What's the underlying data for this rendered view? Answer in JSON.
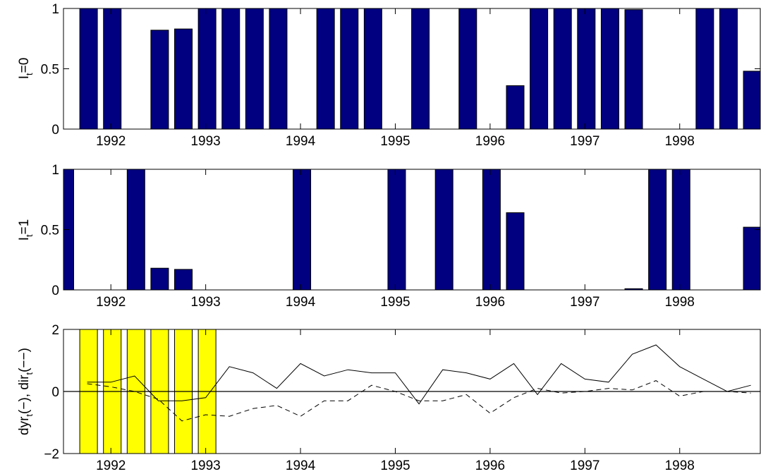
{
  "chart_data": [
    {
      "type": "bar",
      "ylabel_main": "I",
      "ylabel_sub": "t",
      "ylabel_rest": "=0",
      "xlim": [
        1991.5,
        1998.85
      ],
      "ylim": [
        0,
        1
      ],
      "yticks": [
        "0",
        "0.5",
        "1"
      ],
      "xticks": [
        "1992",
        "1993",
        "1994",
        "1995",
        "1996",
        "1997",
        "1998"
      ],
      "bar_color": "#000080",
      "x": [
        1991.75,
        1992.0,
        1992.25,
        1992.5,
        1992.75,
        1993.0,
        1993.25,
        1993.5,
        1993.75,
        1994.0,
        1994.25,
        1994.5,
        1994.75,
        1995.0,
        1995.25,
        1995.5,
        1995.75,
        1996.0,
        1996.25,
        1996.5,
        1996.75,
        1997.0,
        1997.25,
        1997.5,
        1997.75,
        1998.0,
        1998.25,
        1998.5,
        1998.75
      ],
      "values": [
        1,
        1,
        0,
        0.82,
        0.83,
        1,
        1,
        1,
        1,
        0,
        1,
        1,
        1,
        0,
        1,
        0,
        1,
        0,
        0.36,
        1,
        1,
        1,
        1,
        0.99,
        0,
        0,
        1,
        1,
        0.48
      ]
    },
    {
      "type": "bar",
      "ylabel_main": "I",
      "ylabel_sub": "t",
      "ylabel_rest": "=1",
      "xlim": [
        1991.5,
        1998.85
      ],
      "ylim": [
        0,
        1
      ],
      "yticks": [
        "0",
        "0.5",
        "1"
      ],
      "xticks": [
        "1992",
        "1993",
        "1994",
        "1995",
        "1996",
        "1997",
        "1998"
      ],
      "bar_color": "#000080",
      "x": [
        1991.5,
        1991.75,
        1992.0,
        1992.25,
        1992.5,
        1992.75,
        1993.0,
        1993.25,
        1993.5,
        1993.75,
        1994.0,
        1994.25,
        1994.5,
        1994.75,
        1995.0,
        1995.25,
        1995.5,
        1995.75,
        1996.0,
        1996.25,
        1996.5,
        1996.75,
        1997.0,
        1997.25,
        1997.5,
        1997.75,
        1998.0,
        1998.25,
        1998.5,
        1998.75
      ],
      "values": [
        1,
        0,
        0,
        1,
        0.18,
        0.17,
        0,
        0,
        0,
        0,
        1,
        0,
        0,
        0,
        1,
        0,
        1,
        0,
        1,
        0.64,
        0,
        0,
        0,
        0,
        0.01,
        1,
        1,
        0,
        0,
        0.52
      ]
    },
    {
      "type": "line",
      "ylabel_a": "dyr",
      "ylabel_a_sub": "t",
      "ylabel_b": "(−), dir",
      "ylabel_b_sub": "t",
      "ylabel_c": "(−−)",
      "xlim": [
        1991.5,
        1998.85
      ],
      "ylim": [
        -2,
        2
      ],
      "yticks": [
        "−2",
        "0",
        "2"
      ],
      "xticks": [
        "1992",
        "1993",
        "1994",
        "1995",
        "1996",
        "1997",
        "1998"
      ],
      "highlight_color": "#ffff00",
      "highlight_x": [
        1991.75,
        1992.0,
        1992.25,
        1992.5,
        1992.75,
        1993.0
      ],
      "x": [
        1991.75,
        1992.0,
        1992.25,
        1992.5,
        1992.75,
        1993.0,
        1993.25,
        1993.5,
        1993.75,
        1994.0,
        1994.25,
        1994.5,
        1994.75,
        1995.0,
        1995.25,
        1995.5,
        1995.75,
        1996.0,
        1996.25,
        1996.5,
        1996.75,
        1997.0,
        1997.25,
        1997.5,
        1997.75,
        1998.0,
        1998.25,
        1998.5,
        1998.75
      ],
      "series": [
        {
          "style": "solid",
          "values": [
            0.3,
            0.3,
            0.5,
            -0.3,
            -0.3,
            -0.2,
            0.8,
            0.6,
            0.1,
            0.9,
            0.5,
            0.7,
            0.6,
            0.6,
            -0.4,
            0.7,
            0.6,
            0.4,
            0.9,
            -0.1,
            0.9,
            0.4,
            0.3,
            1.2,
            1.5,
            0.8,
            0.4,
            0.0,
            0.2
          ]
        },
        {
          "style": "dashed",
          "values": [
            0.25,
            0.15,
            0.0,
            -0.25,
            -0.95,
            -0.75,
            -0.8,
            -0.55,
            -0.45,
            -0.8,
            -0.3,
            -0.3,
            0.2,
            0.0,
            -0.3,
            -0.3,
            -0.1,
            -0.7,
            -0.2,
            0.1,
            -0.05,
            0.0,
            0.1,
            0.05,
            0.35,
            -0.15,
            0.0,
            0.0,
            -0.05
          ]
        }
      ]
    }
  ]
}
